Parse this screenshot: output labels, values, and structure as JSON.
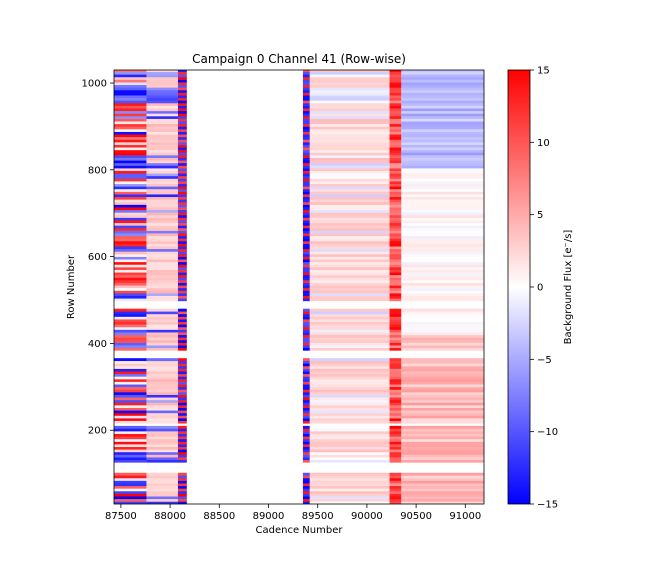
{
  "chart_data": {
    "type": "heatmap",
    "title": "Campaign 0 Channel 41 (Row-wise)",
    "xlabel": "Cadence Number",
    "ylabel": "Row Number",
    "colorbar_label": "Background Flux [e⁻/s]",
    "colormap": "bwr",
    "xlim": [
      87430,
      91190
    ],
    "ylim": [
      30,
      1030
    ],
    "clim": [
      -15,
      15
    ],
    "x_ticks": [
      87500,
      88000,
      88500,
      89000,
      89500,
      90000,
      90500,
      91000
    ],
    "y_ticks": [
      200,
      400,
      600,
      800,
      1000
    ],
    "colorbar_ticks": [
      -15,
      -10,
      -5,
      0,
      5,
      10,
      15
    ],
    "cadence_segments": [
      {
        "start": 87430,
        "end": 87760,
        "character": "mixed, strong positive and negative rows"
      },
      {
        "start": 87760,
        "end": 88080,
        "character": "mostly mild positive, some negative rows"
      },
      {
        "start": 88080,
        "end": 88170,
        "character": "alternating strong rows"
      },
      {
        "start": 89350,
        "end": 89420,
        "character": "alternating strong rows"
      },
      {
        "start": 89420,
        "end": 90230,
        "character": "mild positive"
      },
      {
        "start": 90230,
        "end": 90350,
        "character": "strong positive step"
      },
      {
        "start": 90350,
        "end": 91190,
        "character": "negative above row 800, positive below row 420"
      }
    ],
    "row_gaps": [
      [
        480,
        495
      ],
      [
        365,
        380
      ],
      [
        205,
        215
      ],
      [
        100,
        120
      ]
    ]
  },
  "colors": {
    "min": "#0000ff",
    "mid": "#ffffff",
    "max": "#ff0000"
  }
}
